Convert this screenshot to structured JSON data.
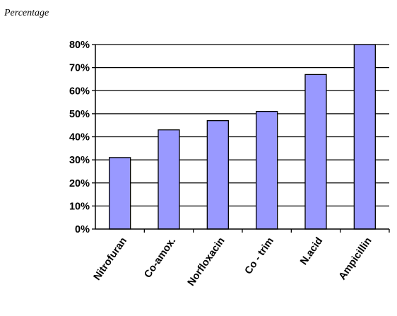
{
  "chart_data": {
    "type": "bar",
    "ylabel": "Percentage",
    "xlabel": "",
    "categories": [
      "Nitrofuran",
      "Co-amox.",
      "Norfloxacin",
      "Co - trim",
      "N.acid",
      "Ampicillin"
    ],
    "values": [
      31,
      43,
      47,
      51,
      67,
      80
    ],
    "ylim": [
      0,
      80
    ],
    "y_ticks": [
      "0%",
      "10%",
      "20%",
      "30%",
      "40%",
      "50%",
      "60%",
      "70%",
      "80%"
    ],
    "y_tick_values": [
      0,
      10,
      20,
      30,
      40,
      50,
      60,
      70,
      80
    ],
    "grid": true,
    "legend": "none",
    "colors": {
      "bar_fill": "#9999ff",
      "bar_stroke": "#000000",
      "grid": "#000000"
    }
  }
}
